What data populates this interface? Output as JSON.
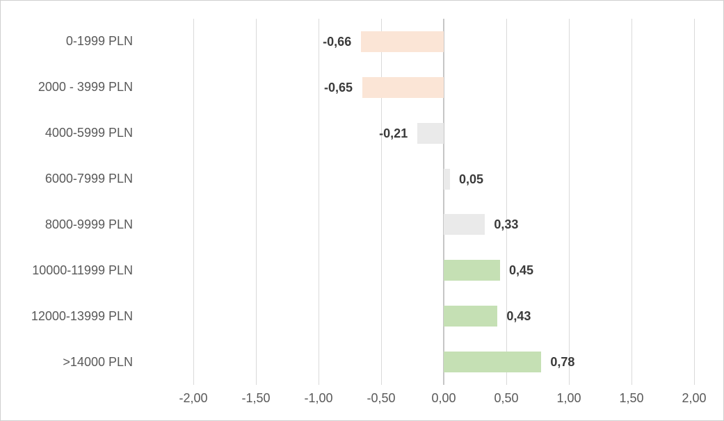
{
  "chart_data": {
    "type": "bar",
    "orientation": "horizontal",
    "title": "",
    "xlabel": "",
    "ylabel": "",
    "grid": true,
    "legend": false,
    "categories": [
      "0-1999 PLN",
      "2000 - 3999 PLN",
      "4000-5999 PLN",
      "6000-7999 PLN",
      "8000-9999 PLN",
      "10000-11999 PLN",
      "12000-13999 PLN",
      ">14000 PLN"
    ],
    "values": [
      -0.66,
      -0.65,
      -0.21,
      0.05,
      0.33,
      0.45,
      0.43,
      0.78
    ],
    "value_labels": [
      "-0,66",
      "-0,65",
      "-0,21",
      "0,05",
      "0,33",
      "0,45",
      "0,43",
      "0,78"
    ],
    "bar_colors": [
      "#FBE5D6",
      "#FBE5D6",
      "#EAEAEA",
      "#EAEAEA",
      "#EAEAEA",
      "#C5E0B4",
      "#C5E0B4",
      "#C5E0B4"
    ],
    "x_ticks": [
      -2,
      -1.5,
      -1,
      -0.5,
      0,
      0.5,
      1,
      1.5,
      2
    ],
    "x_tick_labels": [
      "-2,00",
      "-1,50",
      "-1,00",
      "-0,50",
      "0,00",
      "0,50",
      "1,00",
      "1,50",
      "2,00"
    ],
    "xlim": [
      -2,
      2
    ]
  },
  "colors": {
    "background": "#FFFFFF",
    "border": "#CFCFCF",
    "gridline": "#D9D9D9",
    "zero_line": "#C6C6C6",
    "category_label": "#595959",
    "tick_label": "#595959",
    "value_label": "#3A3A3A",
    "negative_bar": "#FBE5D6",
    "neutral_bar": "#EAEAEA",
    "positive_bar": "#C5E0B4"
  }
}
